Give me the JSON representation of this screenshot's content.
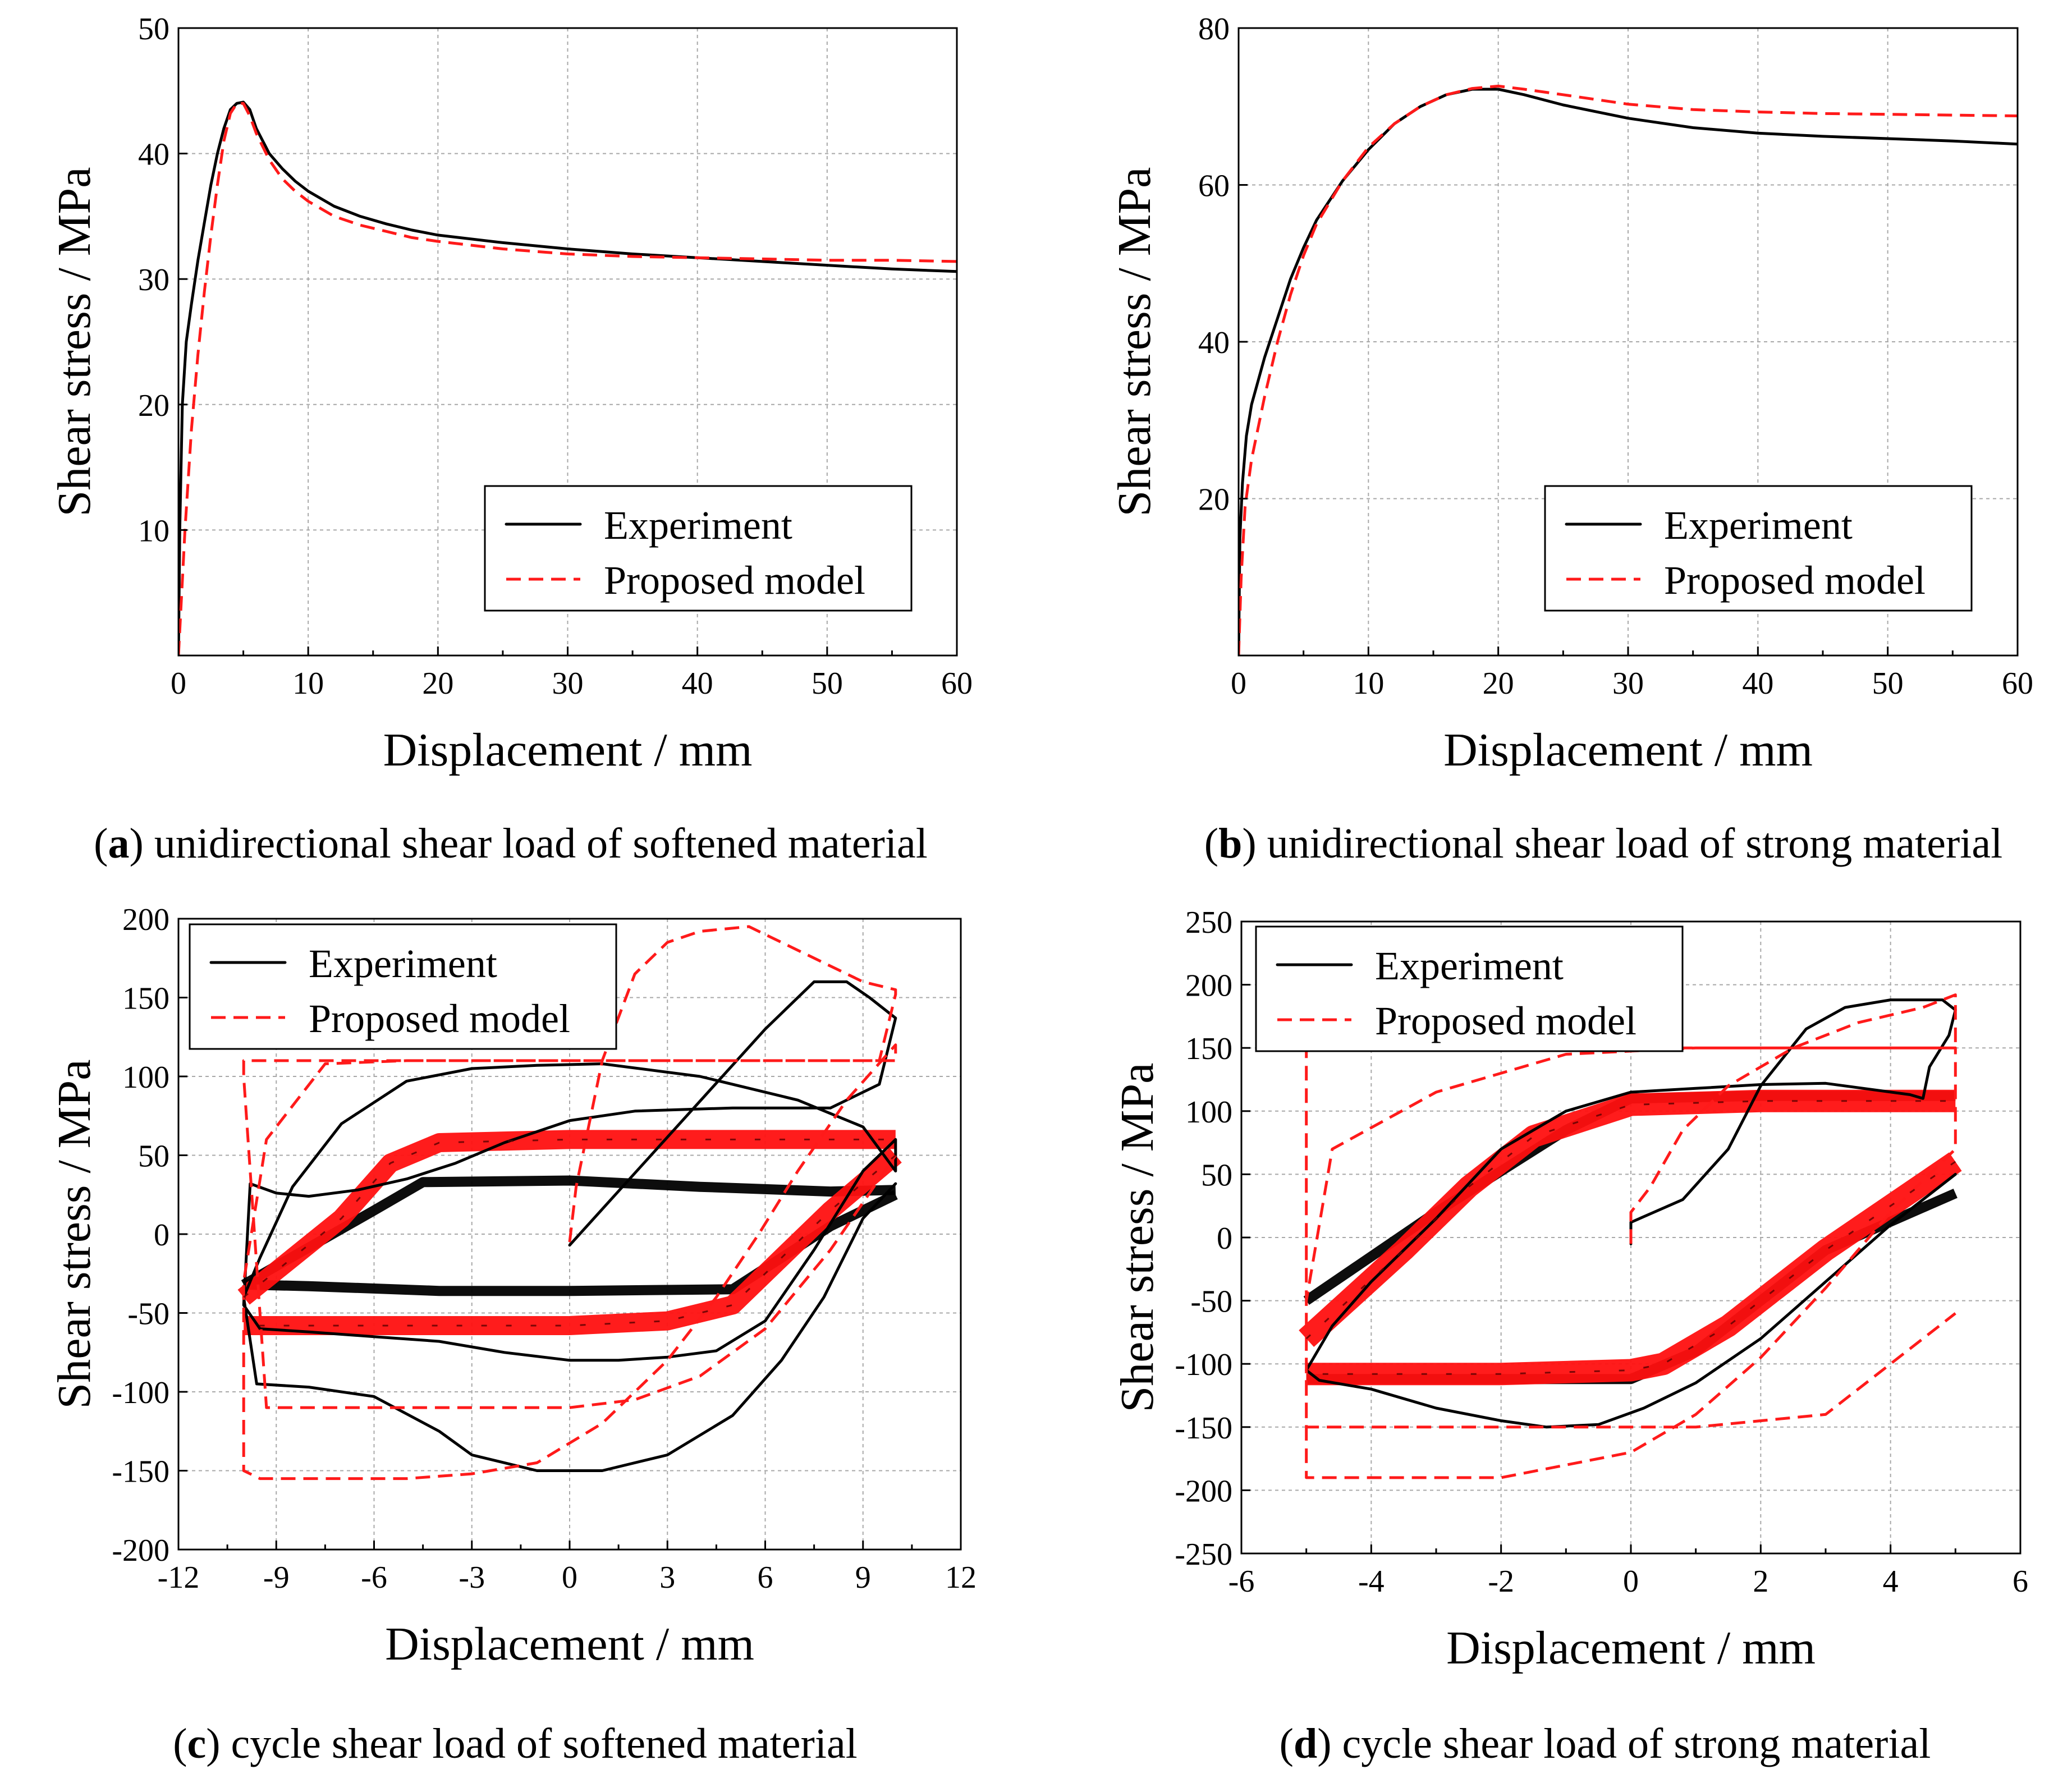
{
  "chart_data": [
    {
      "id": "a",
      "type": "line",
      "caption_letter": "a",
      "caption_text": " unidirectional shear load of softened material",
      "xlabel": "Displacement / mm",
      "ylabel": "Shear stress / MPa",
      "xlim": [
        0,
        60
      ],
      "ylim": [
        0,
        50
      ],
      "xticks": [
        0,
        10,
        20,
        30,
        40,
        50,
        60
      ],
      "yticks": [
        10,
        20,
        30,
        40,
        50
      ],
      "grid": true,
      "legend": [
        "Experiment",
        "Proposed model"
      ],
      "legend_position": "bottom-right",
      "series": [
        {
          "name": "Experiment",
          "x": [
            0,
            0.1,
            0.3,
            0.6,
            1,
            1.5,
            2,
            2.5,
            3,
            3.5,
            4,
            4.5,
            5,
            5.5,
            6,
            7,
            8,
            9,
            10,
            12,
            14,
            16,
            18,
            20,
            25,
            30,
            35,
            40,
            45,
            50,
            55,
            60
          ],
          "y": [
            0,
            10,
            20,
            25,
            28,
            31.5,
            34.5,
            37.5,
            40,
            42,
            43.5,
            44,
            44.1,
            43.5,
            42,
            40,
            38.8,
            37.8,
            37,
            35.8,
            35,
            34.4,
            33.9,
            33.5,
            32.9,
            32.4,
            32,
            31.7,
            31.4,
            31.1,
            30.8,
            30.6
          ]
        },
        {
          "name": "Proposed model",
          "x": [
            0,
            0.25,
            0.5,
            1,
            1.5,
            2,
            2.5,
            3,
            3.5,
            4,
            4.5,
            5,
            5.5,
            6,
            7,
            8,
            9,
            10,
            12,
            14,
            16,
            18,
            20,
            25,
            30,
            35,
            40,
            45,
            50,
            55,
            60
          ],
          "y": [
            0,
            5,
            10,
            18,
            24,
            29,
            33.5,
            37.5,
            41,
            43.2,
            44,
            44,
            43,
            41.6,
            39.5,
            38,
            37,
            36.2,
            35,
            34.3,
            33.8,
            33.3,
            33,
            32.4,
            32,
            31.8,
            31.7,
            31.6,
            31.5,
            31.5,
            31.4
          ]
        }
      ]
    },
    {
      "id": "b",
      "type": "line",
      "caption_letter": "b",
      "caption_text": " unidirectional shear load of strong material",
      "xlabel": "Displacement / mm",
      "ylabel": "Shear stress / MPa",
      "xlim": [
        0,
        60
      ],
      "ylim": [
        0,
        80
      ],
      "xticks": [
        0,
        10,
        20,
        30,
        40,
        50,
        60
      ],
      "yticks": [
        20,
        40,
        60,
        80
      ],
      "grid": true,
      "legend": [
        "Experiment",
        "Proposed model"
      ],
      "legend_position": "bottom-right",
      "series": [
        {
          "name": "Experiment",
          "x": [
            0,
            0.1,
            0.3,
            0.6,
            1,
            2,
            3,
            4,
            5,
            6,
            8,
            10,
            12,
            14,
            16,
            18,
            20,
            22,
            25,
            30,
            35,
            40,
            45,
            50,
            55,
            60
          ],
          "y": [
            0,
            15,
            22,
            28,
            32,
            38,
            43,
            48,
            52,
            55.5,
            60.5,
            64.5,
            67.8,
            70,
            71.5,
            72.2,
            72.2,
            71.5,
            70.2,
            68.5,
            67.3,
            66.6,
            66.2,
            65.9,
            65.6,
            65.2
          ]
        },
        {
          "name": "Proposed model",
          "x": [
            0,
            0.2,
            0.5,
            1,
            2,
            3,
            4,
            5,
            6,
            8,
            10,
            12,
            14,
            16,
            18,
            20,
            22,
            25,
            30,
            35,
            40,
            45,
            50,
            55,
            60
          ],
          "y": [
            0,
            10,
            19,
            25,
            33,
            40,
            46,
            51,
            55,
            60.5,
            64.8,
            67.8,
            70,
            71.5,
            72.3,
            72.6,
            72.2,
            71.5,
            70.3,
            69.6,
            69.3,
            69.1,
            69,
            68.9,
            68.8
          ]
        }
      ]
    },
    {
      "id": "c",
      "type": "line",
      "caption_letter": "c",
      "caption_text": " cycle shear load of softened material",
      "xlabel": "Displacement / mm",
      "ylabel": "Shear stress / MPa",
      "xlim": [
        -12,
        12
      ],
      "ylim": [
        -200,
        200
      ],
      "xticks": [
        -12,
        -9,
        -6,
        -3,
        0,
        3,
        6,
        9,
        12
      ],
      "yticks": [
        -200,
        -150,
        -100,
        -50,
        0,
        50,
        100,
        150,
        200
      ],
      "grid": true,
      "legend": [
        "Experiment",
        "Proposed model"
      ],
      "legend_position": "top-left",
      "series": [
        {
          "name": "Experiment",
          "role": "first-cycles",
          "x": [
            0,
            6,
            7.5,
            8.5,
            9.2,
            10,
            9.5,
            8,
            5,
            2,
            0,
            -2,
            -3.5,
            -5,
            -6.5,
            -8,
            -9,
            -9.8,
            -10,
            -9.5,
            -8,
            -6,
            -4,
            -2,
            0,
            1.5,
            3,
            4.5,
            6,
            7.5,
            9,
            10,
            10,
            9,
            7,
            4,
            1,
            -1,
            -3,
            -5,
            -7,
            -8.5,
            -9.5,
            -10,
            -9.6,
            -8,
            -6,
            -4,
            -3,
            -1,
            1,
            3,
            5,
            6.5,
            7.8,
            9,
            10
          ],
          "y": [
            -7,
            130,
            160,
            160,
            150,
            137,
            95,
            80,
            80,
            78,
            72,
            58,
            45,
            35,
            28,
            24,
            26,
            32,
            -45,
            -60,
            -62,
            -65,
            -68,
            -75,
            -80,
            -80,
            -78,
            -74,
            -55,
            -10,
            40,
            60,
            40,
            68,
            85,
            100,
            108,
            107,
            105,
            97,
            70,
            30,
            -15,
            -40,
            -95,
            -97,
            -103,
            -125,
            -140,
            -150,
            -150,
            -140,
            -115,
            -80,
            -40,
            10,
            32
          ]
        },
        {
          "name": "Experiment",
          "role": "band-upper",
          "x": [
            -10,
            -6,
            -4.5,
            0,
            4,
            8,
            10
          ],
          "y": [
            -32,
            15,
            33,
            34,
            30,
            27,
            28
          ]
        },
        {
          "name": "Experiment",
          "role": "band-lower",
          "x": [
            10,
            8,
            5,
            0,
            -4,
            -8,
            -10
          ],
          "y": [
            25,
            5,
            -35,
            -36,
            -36,
            -33,
            -32
          ]
        },
        {
          "name": "Proposed model",
          "role": "first-cycles",
          "x": [
            0,
            0.2,
            1,
            2,
            3,
            4,
            5.5,
            7,
            9,
            10,
            10,
            9.5,
            8.5,
            7,
            5,
            3,
            1,
            -2,
            -5,
            -7.5,
            -9.3,
            -10,
            -10,
            -9.5,
            -8.5,
            -7,
            -5,
            -3,
            -1,
            1,
            3,
            4.5,
            5.8,
            7,
            8.5,
            10,
            10,
            8,
            4,
            0,
            -4,
            -8,
            -10,
            -10,
            -9.3,
            -8,
            -6,
            -3,
            0,
            2,
            4,
            6,
            8,
            10
          ],
          "y": [
            -5,
            30,
            110,
            165,
            185,
            192,
            195,
            180,
            160,
            155,
            152,
            110,
            110,
            110,
            110,
            110,
            110,
            110,
            110,
            108,
            60,
            -30,
            -150,
            -155,
            -155,
            -155,
            -155,
            -152,
            -145,
            -120,
            -80,
            -40,
            0,
            40,
            85,
            120,
            110,
            110,
            110,
            110,
            110,
            110,
            110,
            100,
            -110,
            -110,
            -110,
            -110,
            -110,
            -105,
            -90,
            -60,
            -10,
            50
          ]
        },
        {
          "name": "Proposed model",
          "role": "band-upper",
          "x": [
            -10,
            -7,
            -5.5,
            -4,
            0,
            4,
            8,
            10
          ],
          "y": [
            -40,
            10,
            45,
            58,
            60,
            60,
            60,
            60
          ]
        },
        {
          "name": "Proposed model",
          "role": "band-lower",
          "x": [
            10,
            8,
            5,
            3,
            0,
            -4,
            -8,
            -10
          ],
          "y": [
            50,
            15,
            -45,
            -55,
            -58,
            -58,
            -58,
            -58
          ]
        }
      ]
    },
    {
      "id": "d",
      "type": "line",
      "caption_letter": "d",
      "caption_text": " cycle shear load of strong material",
      "xlabel": "Displacement / mm",
      "ylabel": "Shear stress / MPa",
      "xlim": [
        -6,
        6
      ],
      "ylim": [
        -250,
        250
      ],
      "xticks": [
        -6,
        -4,
        -2,
        0,
        2,
        4,
        6
      ],
      "yticks": [
        -250,
        -200,
        -150,
        -100,
        -50,
        0,
        50,
        100,
        150,
        200,
        250
      ],
      "grid": true,
      "legend": [
        "Experiment",
        "Proposed model"
      ],
      "legend_position": "top-left",
      "series": [
        {
          "name": "Experiment",
          "role": "first-cycles",
          "x": [
            0,
            0,
            0.8,
            1.5,
            2,
            2.7,
            3.3,
            4,
            4.8,
            5,
            4.9,
            4.6,
            4.5,
            4.3,
            3,
            2,
            1,
            0,
            -1,
            -2,
            -3,
            -4,
            -4.6,
            -5,
            -4.8,
            -4,
            -3,
            -2,
            -1.3,
            -0.5,
            0.2,
            1,
            2,
            3,
            4,
            5
          ],
          "y": [
            -5,
            12,
            30,
            70,
            120,
            165,
            182,
            188,
            188,
            180,
            160,
            135,
            110,
            113,
            122,
            121,
            118,
            115,
            100,
            70,
            15,
            -35,
            -70,
            -105,
            -113,
            -120,
            -135,
            -145,
            -150,
            -148,
            -135,
            -115,
            -80,
            -35,
            10,
            50
          ]
        },
        {
          "name": "Experiment",
          "role": "band-upper",
          "x": [
            -5,
            -3,
            -1,
            0,
            2,
            4,
            5
          ],
          "y": [
            -50,
            20,
            85,
            110,
            112,
            112,
            112
          ]
        },
        {
          "name": "Experiment",
          "role": "band-lower",
          "x": [
            5,
            3,
            1,
            0,
            -2,
            -4,
            -5
          ],
          "y": [
            35,
            -10,
            -90,
            -112,
            -112,
            -112,
            -112
          ]
        },
        {
          "name": "Proposed model",
          "role": "first-cycles",
          "x": [
            0,
            0,
            0.3,
            0.8,
            1.5,
            2.5,
            3.5,
            4.5,
            5,
            5,
            3,
            1,
            -1,
            -3,
            -4.6,
            -5,
            -5,
            -5,
            -4,
            -2,
            0,
            1,
            2,
            3,
            4,
            5,
            5,
            3,
            1,
            -1,
            -3,
            -5,
            -5,
            -5,
            -3,
            -1,
            1,
            3,
            5
          ],
          "y": [
            -5,
            20,
            40,
            85,
            120,
            150,
            170,
            182,
            192,
            150,
            150,
            150,
            145,
            115,
            70,
            -50,
            -150,
            -190,
            -190,
            -190,
            -170,
            -140,
            -95,
            -40,
            20,
            70,
            150,
            150,
            150,
            150,
            150,
            150,
            130,
            -150,
            -150,
            -150,
            -150,
            -140,
            -60
          ]
        },
        {
          "name": "Proposed model",
          "role": "band-upper",
          "x": [
            -5,
            -3.5,
            -2.5,
            -1.5,
            0,
            2,
            4,
            5
          ],
          "y": [
            -80,
            -10,
            40,
            80,
            105,
            108,
            108,
            108
          ]
        },
        {
          "name": "Proposed model",
          "role": "band-lower",
          "x": [
            5,
            3,
            1.5,
            0.5,
            0,
            -2,
            -4,
            -5
          ],
          "y": [
            60,
            -10,
            -70,
            -100,
            -105,
            -108,
            -108,
            -108
          ]
        }
      ]
    }
  ],
  "colors": {
    "experiment": "#000000",
    "model": "#ff1a1a",
    "grid": "#a8a8a8"
  }
}
